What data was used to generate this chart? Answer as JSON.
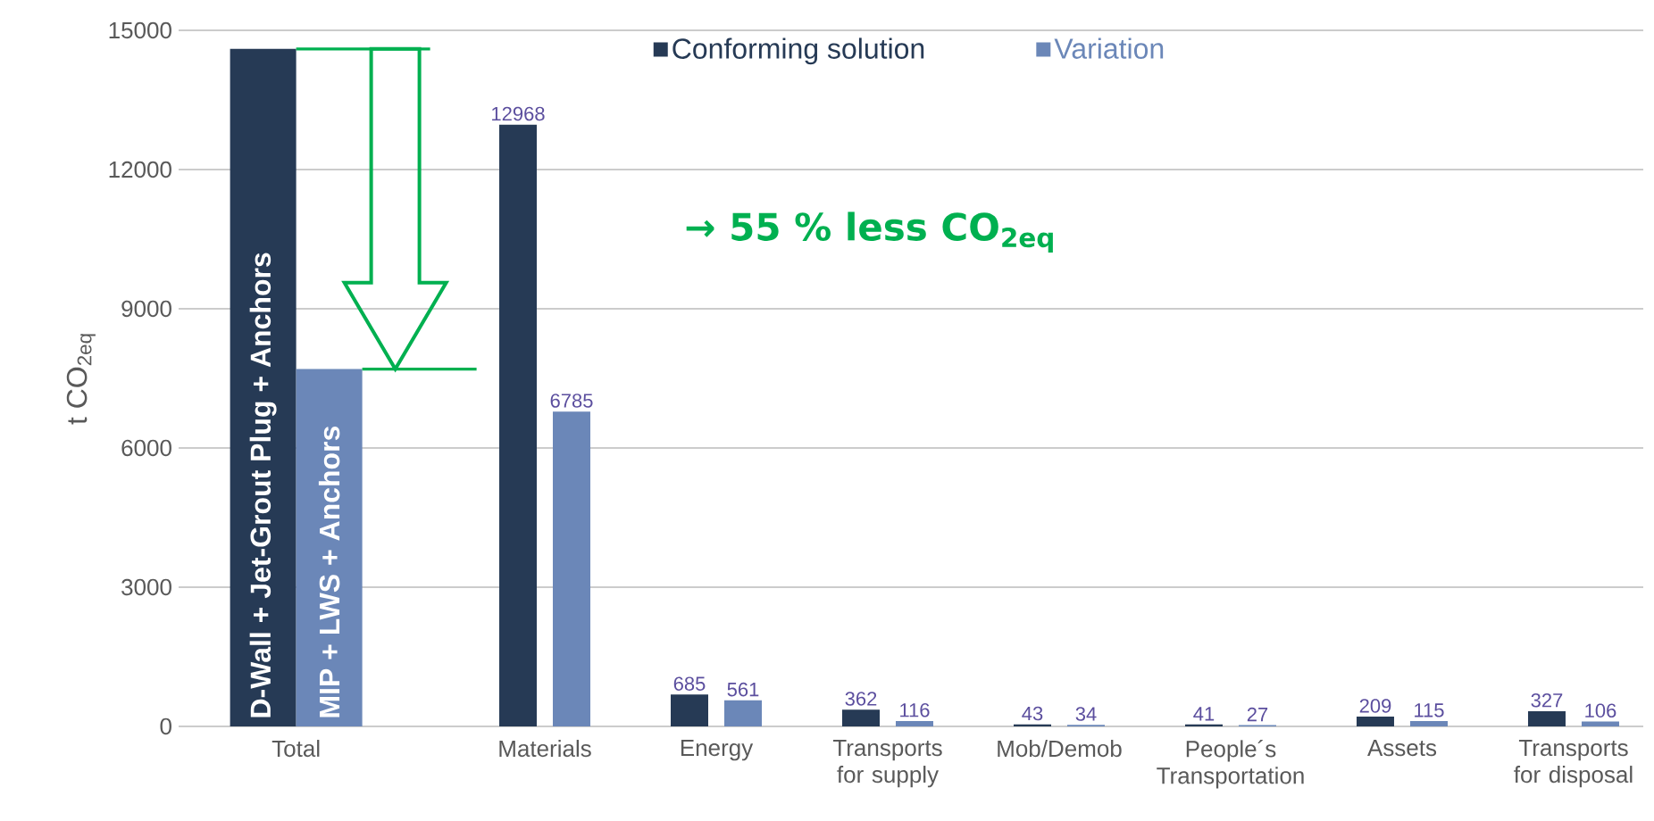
{
  "chart_data": {
    "type": "bar",
    "ylabel": "t CO$_{2eq}$",
    "categories": [
      "Total",
      "Materials",
      "Energy",
      "Transports for supply",
      "Mob/Demob",
      "People´s Transportation",
      "Assets",
      "Transports for disposal"
    ],
    "series": [
      {
        "name": "Conforming solution",
        "color": "#263a55",
        "values": [
          14600,
          12968,
          685,
          362,
          43,
          41,
          209,
          327
        ],
        "value_labels": [
          null,
          "12968",
          "685",
          "362",
          "43",
          "41",
          "209",
          "327"
        ]
      },
      {
        "name": "Variation",
        "color": "#6b87b8",
        "values": [
          7700,
          6785,
          561,
          116,
          34,
          27,
          115,
          106
        ],
        "value_labels": [
          null,
          "6785",
          "561",
          "116",
          "34",
          "27",
          "115",
          "106"
        ]
      }
    ],
    "ylim": [
      0,
      15000
    ],
    "yticks": [
      0,
      3000,
      6000,
      9000,
      12000,
      15000
    ],
    "grid": "y",
    "legend": "top",
    "annotations": [
      "→ 55 % less CO$_{2eq}$",
      "D-Wall + Jet-Grout Plug + Anchors",
      "MIP + LWS + Anchors"
    ]
  }
}
